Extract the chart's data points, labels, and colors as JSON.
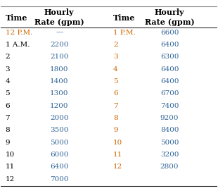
{
  "col_headers": [
    "Time",
    "Hourly\nRate (gpm)",
    "Time",
    "Hourly\nRate (gpm)"
  ],
  "rows": [
    [
      "12 P.M.",
      "—",
      "1 P.M.",
      "6600"
    ],
    [
      "1 A.M.",
      "2200",
      "2",
      "6400"
    ],
    [
      "2",
      "2100",
      "3",
      "6300"
    ],
    [
      "3",
      "1800",
      "4",
      "6400"
    ],
    [
      "4",
      "1400",
      "5",
      "6400"
    ],
    [
      "5",
      "1300",
      "6",
      "6700"
    ],
    [
      "6",
      "1200",
      "7",
      "7400"
    ],
    [
      "7",
      "2000",
      "8",
      "9200"
    ],
    [
      "8",
      "3500",
      "9",
      "8400"
    ],
    [
      "9",
      "5000",
      "10",
      "5000"
    ],
    [
      "10",
      "6000",
      "11",
      "3200"
    ],
    [
      "11",
      "6400",
      "12",
      "2800"
    ],
    [
      "12",
      "7000",
      "",
      ""
    ]
  ],
  "header_color": "#000000",
  "time_color_am": "#000000",
  "time_color_pm": "#cc6600",
  "value_color": "#336699",
  "background_color": "#ffffff",
  "header_bg": "#e8e8e8",
  "font_size": 7.5,
  "header_font_size": 8.0
}
